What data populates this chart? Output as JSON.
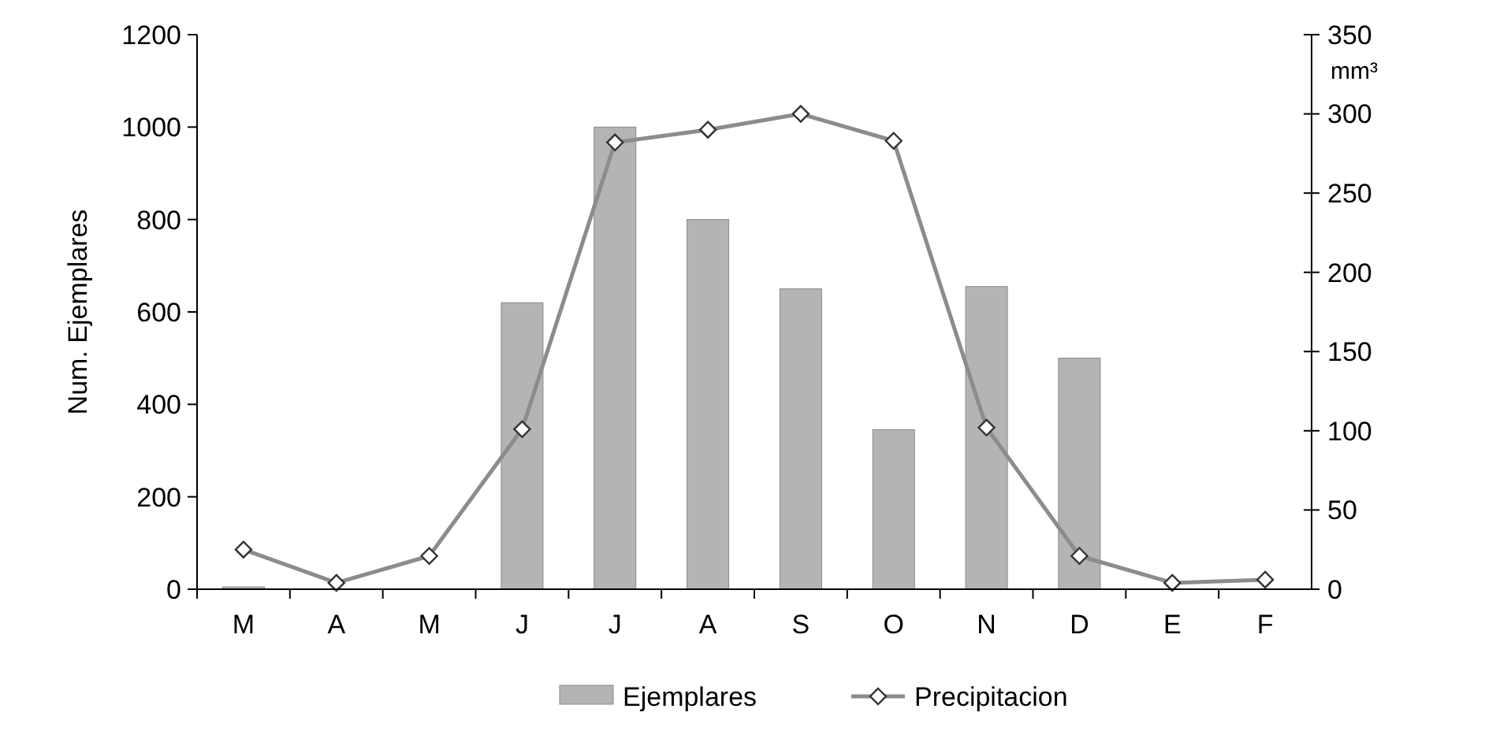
{
  "chart_data": {
    "type": "bar",
    "categories": [
      "M",
      "A",
      "M",
      "J",
      "J",
      "A",
      "S",
      "O",
      "N",
      "D",
      "E",
      "F"
    ],
    "ylabel": "Num. Ejemplares",
    "y2label": "mm³",
    "ylim": [
      0,
      1200
    ],
    "yticks": [
      0,
      200,
      400,
      600,
      800,
      1000,
      1200
    ],
    "y2lim": [
      0,
      350
    ],
    "y2ticks": [
      0,
      50,
      100,
      150,
      200,
      250,
      300,
      350
    ],
    "legend": "bottom",
    "grid": false,
    "series": [
      {
        "name": "Ejemplares",
        "color": "#b4b4b4",
        "values": [
          5,
          0,
          0,
          620,
          1000,
          800,
          650,
          345,
          655,
          500,
          0,
          0
        ]
      },
      {
        "name": "Precipitacion",
        "type": "line",
        "axis": "y2",
        "color": "#8c8c8c",
        "marker": "diamond",
        "line_style": "solid",
        "values": [
          25,
          4,
          21,
          101,
          282,
          290,
          300,
          283,
          102,
          21,
          4,
          6
        ]
      }
    ]
  }
}
